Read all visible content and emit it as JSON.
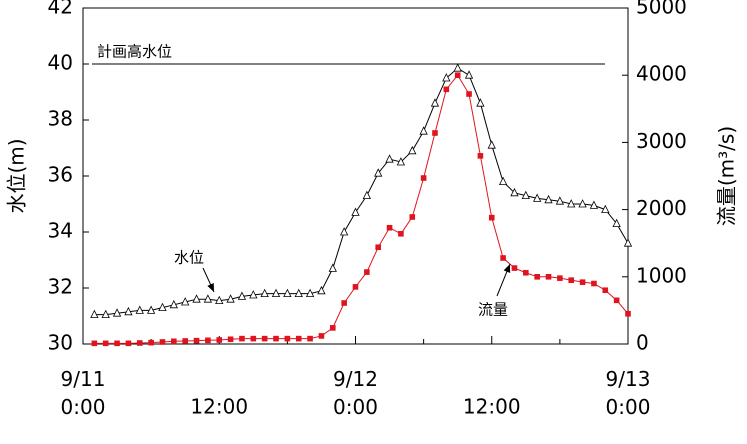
{
  "chart_data": {
    "type": "line",
    "y_label": "水位(m)",
    "y2_label": "流量(m³/s)",
    "x": [
      1,
      2,
      3,
      4,
      5,
      6,
      7,
      8,
      9,
      10,
      11,
      12,
      13,
      14,
      15,
      16,
      17,
      18,
      19,
      20,
      21,
      22,
      23,
      24,
      25,
      26,
      27,
      28,
      29,
      30,
      31,
      32,
      33,
      34,
      35,
      36,
      37,
      38,
      39,
      40,
      41,
      42,
      43,
      44,
      45,
      46,
      47,
      48
    ],
    "xlim": [
      0,
      48
    ],
    "xticks": [
      {
        "value": 0,
        "label": "9/11 0:00"
      },
      {
        "value": 12,
        "label": "12:00"
      },
      {
        "value": 24,
        "label": "9/12 0:00"
      },
      {
        "value": 36,
        "label": "12:00"
      },
      {
        "value": 48,
        "label": "9/13 0:00"
      }
    ],
    "ylim": [
      30,
      42
    ],
    "yticks": [
      30,
      32,
      34,
      36,
      38,
      40,
      42
    ],
    "y2lim": [
      0,
      5000
    ],
    "y2ticks": [
      0,
      1000,
      2000,
      3000,
      4000,
      5000
    ],
    "reference_line": {
      "label": "計画高水位",
      "value": 40
    },
    "series": [
      {
        "name": "水位",
        "color": "#000000",
        "marker": "triangle",
        "values": [
          31.05,
          31.05,
          31.1,
          31.15,
          31.2,
          31.2,
          31.3,
          31.4,
          31.5,
          31.6,
          31.6,
          31.55,
          31.6,
          31.7,
          31.75,
          31.8,
          31.8,
          31.8,
          31.8,
          31.8,
          31.9,
          32.7,
          34.0,
          34.7,
          35.3,
          36.1,
          36.6,
          36.5,
          36.9,
          37.6,
          38.6,
          39.5,
          39.85,
          39.6,
          38.6,
          37.1,
          35.8,
          35.4,
          35.3,
          35.2,
          35.15,
          35.1,
          35.0,
          35.0,
          34.95,
          34.8,
          34.3,
          33.6
        ]
      },
      {
        "name": "流量",
        "color": "#e0141e",
        "marker": "square",
        "axis": "y2",
        "values": [
          10,
          10,
          10,
          10,
          15,
          20,
          30,
          40,
          45,
          50,
          55,
          60,
          70,
          80,
          80,
          80,
          80,
          80,
          80,
          80,
          120,
          240,
          610,
          850,
          1070,
          1440,
          1730,
          1640,
          1890,
          2470,
          3140,
          3790,
          4000,
          3720,
          2800,
          1880,
          1280,
          1130,
          1060,
          1000,
          1000,
          980,
          950,
          920,
          900,
          800,
          650,
          450
        ]
      }
    ]
  }
}
